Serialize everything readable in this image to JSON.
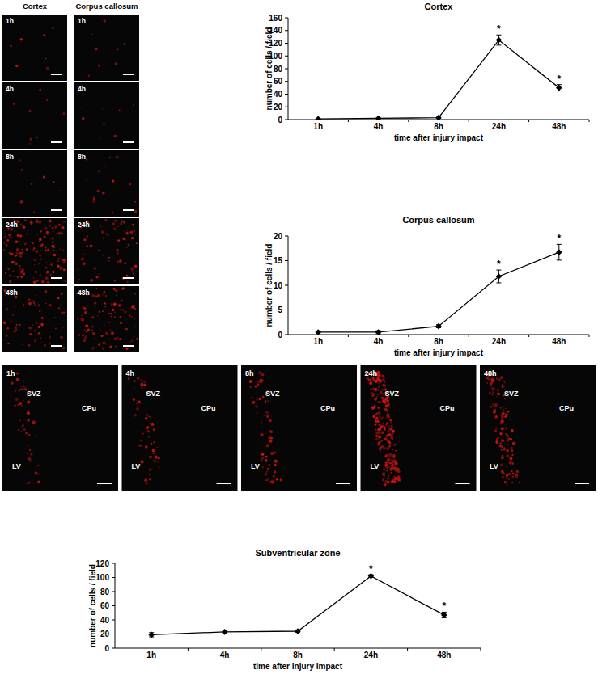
{
  "chart_data": [
    {
      "type": "line",
      "title": "Cortex",
      "x_label": "time after injury impact",
      "y_label": "number of cells / field",
      "categories": [
        "1h",
        "4h",
        "8h",
        "24h",
        "48h"
      ],
      "values": [
        1,
        2,
        3,
        125,
        50
      ],
      "errors": [
        0.5,
        0.5,
        0.5,
        8,
        5
      ],
      "significance": [
        null,
        null,
        null,
        "*",
        "*"
      ],
      "color": "#000000",
      "marker": "diamond",
      "ylim": [
        0,
        160
      ],
      "yticks": [
        0,
        20,
        40,
        60,
        80,
        100,
        120,
        140,
        160
      ],
      "grid": false
    },
    {
      "type": "line",
      "title": "Corpus callosum",
      "x_label": "time after injury impact",
      "y_label": "number of cells / field",
      "categories": [
        "1h",
        "4h",
        "8h",
        "24h",
        "48h"
      ],
      "values": [
        0.5,
        0.5,
        1.7,
        11.8,
        16.7
      ],
      "errors": [
        0.2,
        0.3,
        0.3,
        1.3,
        1.6
      ],
      "significance": [
        null,
        null,
        null,
        "*",
        "*"
      ],
      "color": "#000000",
      "marker": "diamond",
      "ylim": [
        0,
        20
      ],
      "yticks": [
        0,
        5,
        10,
        15,
        20
      ],
      "grid": false
    },
    {
      "type": "line",
      "title": "Subventricular zone",
      "x_label": "time after injury impact",
      "y_label": "number of cells / field",
      "categories": [
        "1h",
        "4h",
        "8h",
        "24h",
        "48h"
      ],
      "values": [
        19,
        23,
        24,
        102,
        47
      ],
      "errors": [
        3,
        2.5,
        1.5,
        2,
        4
      ],
      "significance": [
        null,
        null,
        null,
        "*",
        "*"
      ],
      "color": "#000000",
      "marker": "diamond",
      "ylim": [
        0,
        120
      ],
      "yticks": [
        0,
        20,
        40,
        60,
        80,
        100,
        120
      ],
      "grid": false
    }
  ],
  "images": {
    "columns": [
      "Cortex",
      "Corpus callosum"
    ],
    "time_labels": [
      "1h",
      "4h",
      "8h",
      "24h",
      "48h"
    ],
    "svz_time_labels": [
      "1h",
      "4h",
      "8h",
      "24h",
      "48h"
    ],
    "regions": [
      "SVZ",
      "CPu",
      "LV"
    ]
  }
}
